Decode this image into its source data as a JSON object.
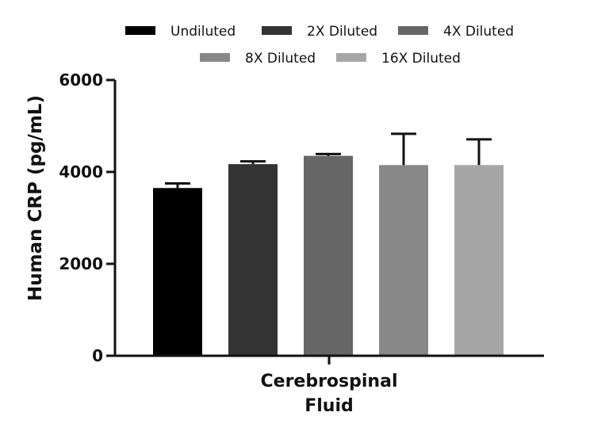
{
  "chart_data": {
    "type": "bar",
    "title": "",
    "xlabel": "",
    "ylabel": "Human CRP (pg/mL)",
    "category_label_lines": [
      "Cerebrospinal",
      "Fluid"
    ],
    "ylim": [
      0,
      6000
    ],
    "yticks": [
      "0",
      "2000",
      "4000",
      "6000"
    ],
    "grid": false,
    "legend_position": "top",
    "series": [
      {
        "name": "Undiluted",
        "value": 3650,
        "error": 100,
        "color": "#000000"
      },
      {
        "name": "2X Diluted",
        "value": 4170,
        "error": 60,
        "color": "#333333"
      },
      {
        "name": "4X Diluted",
        "value": 4350,
        "error": 40,
        "color": "#666666"
      },
      {
        "name": "8X Diluted",
        "value": 4150,
        "error": 680,
        "color": "#888888"
      },
      {
        "name": "16X Diluted",
        "value": 4150,
        "error": 560,
        "color": "#a6a6a6"
      }
    ]
  }
}
